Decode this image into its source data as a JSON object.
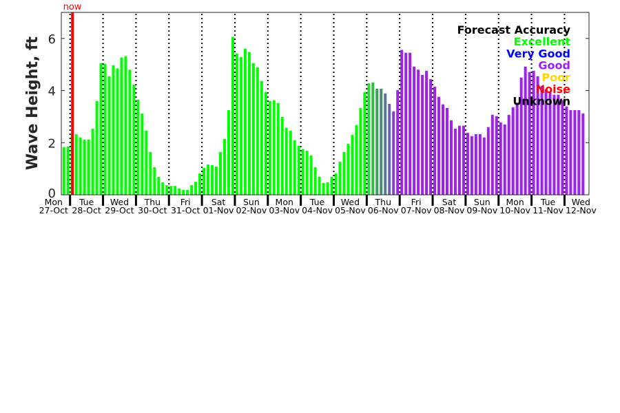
{
  "chart_data": {
    "type": "bar",
    "title": "",
    "xlabel": "",
    "ylabel": "Wave Height, ft",
    "ylim": [
      0,
      7
    ],
    "yticks": [
      0,
      2,
      4,
      6
    ],
    "grid": "dotted vertical lines at day boundaries",
    "now_label": "now",
    "now_bar_index": 2,
    "days": [
      {
        "name": "Mon",
        "date": "27-Oct"
      },
      {
        "name": "Tue",
        "date": "28-Oct"
      },
      {
        "name": "Wed",
        "date": "29-Oct"
      },
      {
        "name": "Thu",
        "date": "30-Oct"
      },
      {
        "name": "Fri",
        "date": "31-Oct"
      },
      {
        "name": "Sat",
        "date": "01-Nov"
      },
      {
        "name": "Sun",
        "date": "02-Nov"
      },
      {
        "name": "Mon",
        "date": "03-Nov"
      },
      {
        "name": "Tue",
        "date": "04-Nov"
      },
      {
        "name": "Wed",
        "date": "05-Nov"
      },
      {
        "name": "Thu",
        "date": "06-Nov"
      },
      {
        "name": "Fri",
        "date": "07-Nov"
      },
      {
        "name": "Sat",
        "date": "08-Nov"
      },
      {
        "name": "Sun",
        "date": "09-Nov"
      },
      {
        "name": "Mon",
        "date": "10-Nov"
      },
      {
        "name": "Tue",
        "date": "11-Nov"
      },
      {
        "name": "Wed",
        "date": "12-Nov"
      }
    ],
    "bars_per_day": 8,
    "values": [
      1.83,
      1.85,
      2.3,
      2.33,
      2.2,
      2.12,
      2.12,
      2.54,
      3.6,
      5.05,
      5.03,
      4.55,
      4.97,
      4.85,
      5.27,
      5.32,
      4.8,
      4.23,
      3.65,
      3.12,
      2.46,
      1.64,
      1.06,
      0.69,
      0.48,
      0.37,
      0.34,
      0.34,
      0.24,
      0.19,
      0.19,
      0.37,
      0.5,
      0.82,
      1.03,
      1.16,
      1.14,
      1.08,
      1.64,
      2.14,
      3.25,
      6.06,
      5.42,
      5.29,
      5.61,
      5.48,
      5.05,
      4.89,
      4.36,
      3.94,
      3.6,
      3.63,
      3.52,
      2.99,
      2.57,
      2.46,
      2.09,
      1.88,
      1.75,
      1.69,
      1.51,
      1.06,
      0.69,
      0.45,
      0.48,
      0.69,
      0.82,
      1.27,
      1.64,
      1.96,
      2.3,
      2.67,
      3.33,
      3.94,
      4.28,
      4.31,
      4.07,
      4.07,
      3.89,
      3.49,
      3.2,
      4.02,
      5.56,
      5.45,
      5.45,
      4.92,
      4.8,
      4.6,
      4.76,
      4.44,
      4.15,
      3.76,
      3.47,
      3.33,
      2.86,
      2.54,
      2.65,
      2.65,
      2.38,
      2.25,
      2.33,
      2.33,
      2.2,
      2.6,
      3.07,
      3.02,
      2.78,
      2.7,
      3.07,
      3.36,
      3.54,
      4.5,
      4.92,
      4.71,
      4.76,
      4.55,
      4.18,
      4.05,
      3.96,
      3.84,
      3.84,
      3.63,
      3.39,
      3.25,
      3.25,
      3.25,
      3.12
    ],
    "bar_color_runs": [
      {
        "count": 74,
        "color": "#00ff00"
      },
      {
        "count": 1,
        "color": "#22dd33"
      },
      {
        "count": 1,
        "color": "#33bb44"
      },
      {
        "count": 1,
        "color": "#3f9f5f"
      },
      {
        "count": 1,
        "color": "#4a8a70"
      },
      {
        "count": 1,
        "color": "#5a7890"
      },
      {
        "count": 1,
        "color": "#6a60b0"
      },
      {
        "count": 1,
        "color": "#8040d0"
      },
      {
        "count": 46,
        "color": "#a020f0"
      }
    ],
    "now_color": "#ff0000",
    "legend": {
      "placement": "top-right",
      "title": "Forecast Accuracy",
      "entries": [
        {
          "label": "Excellent",
          "color": "#00ff00"
        },
        {
          "label": "Very Good",
          "color": "#0000ff"
        },
        {
          "label": "Good",
          "color": "#a020f0"
        },
        {
          "label": "Poor",
          "color": "#ffd700"
        },
        {
          "label": "Noise",
          "color": "#ff0000"
        },
        {
          "label": "Unknown",
          "color": "#000000"
        }
      ]
    }
  }
}
